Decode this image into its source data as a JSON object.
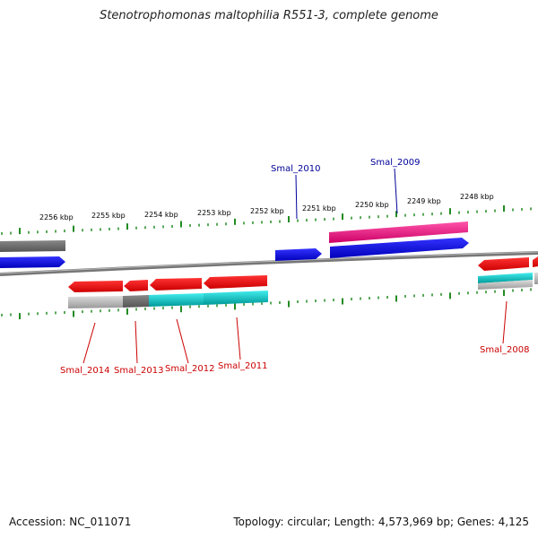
{
  "title": "Stenotrophomonas maltophilia R551-3, complete genome",
  "footer": {
    "accession": "Accession: NC_011071",
    "summary": "Topology: circular; Length: 4,573,969 bp; Genes: 4,125"
  },
  "ticks": [
    "2256 kbp",
    "2255 kbp",
    "2254 kbp",
    "2253 kbp",
    "2252 kbp",
    "2251 kbp",
    "2250 kbp",
    "2249 kbp",
    "2248 kbp"
  ],
  "genes": [
    {
      "label": "Smal_2010",
      "color": "#000099"
    },
    {
      "label": "Smal_2009",
      "color": "#000099"
    },
    {
      "label": "Smal_2014",
      "color": "#cc0000"
    },
    {
      "label": "Smal_2013",
      "color": "#cc0000"
    },
    {
      "label": "Smal_2012",
      "color": "#cc0000"
    },
    {
      "label": "Smal_2011",
      "color": "#cc0000"
    },
    {
      "label": "Smal_2008",
      "color": "#cc0000"
    }
  ],
  "colors": {
    "backbone": "#888888",
    "tick": "#228b22",
    "forward_cds": "#0000ee",
    "reverse_cds": "#ee0000",
    "pink": "#ff3399",
    "cyan": "#00cccc",
    "gray": "#aaaaaa",
    "dark_gray": "#666666"
  }
}
